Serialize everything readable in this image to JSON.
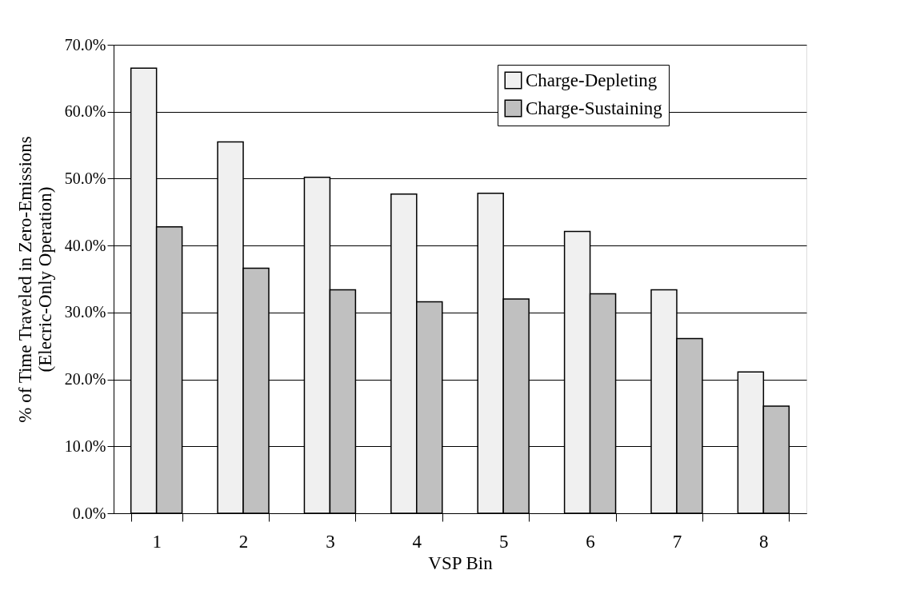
{
  "chart_data": {
    "type": "bar",
    "xlabel": "VSP Bin",
    "ylabel": "% of Time Traveled in Zero-Emissions\n(Elecric-Only Operation)",
    "categories": [
      "1",
      "2",
      "3",
      "4",
      "5",
      "6",
      "7",
      "8"
    ],
    "series": [
      {
        "name": "Charge-Depleting",
        "color": "#f0f0f0",
        "values": [
          66.5,
          55.5,
          50.2,
          47.7,
          47.8,
          42.1,
          33.4,
          21.1
        ]
      },
      {
        "name": "Charge-Sustaining",
        "color": "#c0c0c0",
        "values": [
          42.8,
          36.6,
          33.4,
          31.6,
          32.0,
          32.8,
          26.1,
          16.0
        ]
      }
    ],
    "ylim": [
      0,
      70
    ],
    "yticks": [
      {
        "value": 0,
        "label": "0.0%"
      },
      {
        "value": 10,
        "label": "10.0%"
      },
      {
        "value": 20,
        "label": "20.0%"
      },
      {
        "value": 30,
        "label": "30.0%"
      },
      {
        "value": 40,
        "label": "40.0%"
      },
      {
        "value": 50,
        "label": "50.0%"
      },
      {
        "value": 60,
        "label": "60.0%"
      },
      {
        "value": 70,
        "label": "70.0%"
      }
    ],
    "grid": "y",
    "legend": "top right"
  }
}
